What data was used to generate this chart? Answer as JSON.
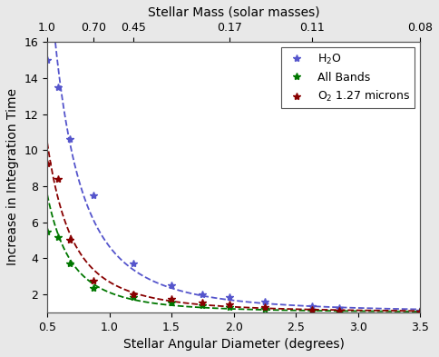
{
  "xlabel": "Stellar Angular Diameter (degrees)",
  "ylabel": "Increase in Integration Time",
  "xlim": [
    0.5,
    3.5
  ],
  "ylim": [
    1.0,
    16.0
  ],
  "yticks": [
    2,
    4,
    6,
    8,
    10,
    12,
    14,
    16
  ],
  "xticks": [
    0.5,
    1.0,
    1.5,
    2.0,
    2.5,
    3.0,
    3.5
  ],
  "top_xlabel": "Stellar Mass (solar masses)",
  "top_tick_positions": [
    0.5,
    0.87,
    1.19,
    1.97,
    2.63,
    3.5
  ],
  "top_tick_labels": [
    "1.0",
    "0.70",
    "0.45",
    "0.17",
    "0.11",
    "0.08"
  ],
  "series": [
    {
      "label": "H$_2$O",
      "color": "#5555cc",
      "marker": "*",
      "x": [
        0.5,
        0.59,
        0.68,
        0.87,
        1.19,
        1.5,
        1.75,
        1.97,
        2.25,
        2.63,
        2.85,
        3.5
      ],
      "y": [
        15.0,
        13.5,
        10.6,
        7.5,
        3.7,
        2.5,
        2.0,
        1.85,
        1.6,
        1.35,
        1.25,
        1.1
      ]
    },
    {
      "label": "All Bands",
      "color": "#007700",
      "marker": "*",
      "x": [
        0.5,
        0.59,
        0.68,
        0.87,
        1.19,
        1.5,
        1.75,
        1.97,
        2.25,
        2.63,
        2.85,
        3.5
      ],
      "y": [
        5.5,
        5.15,
        3.7,
        2.35,
        1.85,
        1.55,
        1.4,
        1.3,
        1.2,
        1.1,
        1.05,
        1.02
      ]
    },
    {
      "label": "O$_2$ 1.27 microns",
      "color": "#880000",
      "marker": "*",
      "x": [
        0.5,
        0.59,
        0.68,
        0.87,
        1.19,
        1.5,
        1.75,
        1.97,
        2.25,
        2.63,
        2.85,
        3.5
      ],
      "y": [
        9.25,
        8.4,
        5.0,
        2.75,
        2.0,
        1.75,
        1.55,
        1.45,
        1.3,
        1.15,
        1.1,
        1.05
      ]
    }
  ],
  "bg_color": "#ffffff",
  "fig_bg_color": "#e8e8e8"
}
